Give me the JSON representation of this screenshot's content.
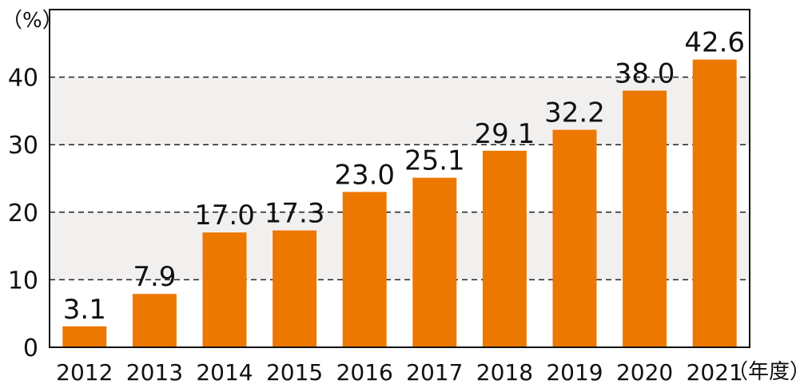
{
  "chart_data": {
    "type": "bar",
    "title": "",
    "y_unit_label": "（%）",
    "x_unit_label": "（年度）",
    "categories": [
      "2012",
      "2013",
      "2014",
      "2015",
      "2016",
      "2017",
      "2018",
      "2019",
      "2020",
      "2021"
    ],
    "values": [
      3.1,
      7.9,
      17.0,
      17.3,
      23.0,
      25.1,
      29.1,
      32.2,
      38.0,
      42.6
    ],
    "value_labels": [
      "3.1",
      "7.9",
      "17.0",
      "17.3",
      "23.0",
      "25.1",
      "29.1",
      "32.2",
      "38.0",
      "42.6"
    ],
    "y_ticks": [
      "0",
      "10",
      "20",
      "30",
      "40"
    ],
    "ylim": [
      0,
      50
    ],
    "grid": "dashed horizontal with alternating bands",
    "bar_color": "#ED7800",
    "band_color": "#F2F0EF"
  }
}
